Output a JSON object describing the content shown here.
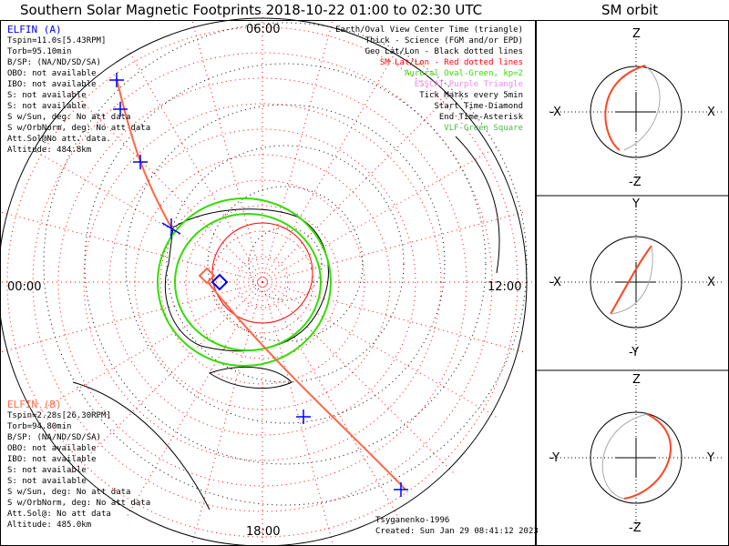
{
  "title": "Southern Solar Magnetic Footprints 2018-10-22 01:00 to 02:30 UTC",
  "orbit_title": "SM orbit",
  "mlt_labels": {
    "top": "06:00",
    "left": "00:00",
    "right": "12:00",
    "bottom": "18:00"
  },
  "legend": [
    {
      "text": "Earth/Oval View Center Time (triangle)",
      "color": "#000000"
    },
    {
      "text": "Thick - Science (FGM and/or EPD)",
      "color": "#000000"
    },
    {
      "text": "Geo Lat/Lon - Black dotted lines",
      "color": "#000000"
    },
    {
      "text": "SM Lat/Lon - Red dotted lines",
      "color": "#ff0000"
    },
    {
      "text": "Auroral Oval-Green, kp=2",
      "color": "#33dd00"
    },
    {
      "text": "EISCAT-Purple Triangle",
      "color": "#ee88ee"
    },
    {
      "text": "Tick Marks every 5min",
      "color": "#000000"
    },
    {
      "text": "Start Time-Diamond",
      "color": "#000000"
    },
    {
      "text": "End Time-Asterisk",
      "color": "#000000"
    },
    {
      "text": "VLF-Green Square",
      "color": "#44bb44"
    }
  ],
  "elfin_a": {
    "name": "ELFIN (A)",
    "color": "#0000ff",
    "lines": [
      "Tspin=11.0s[5.43RPM]",
      "Torb=95.10min",
      "B/SP: (NA/ND/SD/SA)",
      "OBO: not available",
      "IBO: not available",
      "S: not available",
      "S: not available",
      "S w/Sun, deg: No att data",
      "S w/OrbNorm, deg: No att data",
      "Att.Sol@No att. data.",
      "Altitude: 484.8km"
    ]
  },
  "elfin_b": {
    "name": "ELFIN (B)",
    "color": "#ff6644",
    "lines": [
      "Tspin=2.28s[26.30RPM]",
      "Torb=94.80min",
      "B/SP: (NA/ND/SD/SA)",
      "OBO: not available",
      "IBO: not available",
      "S: not available",
      "S: not available",
      "S w/Sun, deg: No att data",
      "S w/OrbNorm, deg: No att data",
      "Att.Sol@: No att data",
      "Altitude: 485.0km"
    ]
  },
  "credit": "Tsyganenko-1996",
  "created": "Created: Sun Jan 29 08:41:12 2023",
  "orbit_panels": [
    {
      "top": "Z",
      "bottom": "-Z",
      "left": "-X",
      "right": "X"
    },
    {
      "top": "Y",
      "bottom": "-Y",
      "left": "-X",
      "right": "X"
    },
    {
      "top": "Z",
      "bottom": "-Z",
      "left": "-Y",
      "right": "Y"
    }
  ]
}
